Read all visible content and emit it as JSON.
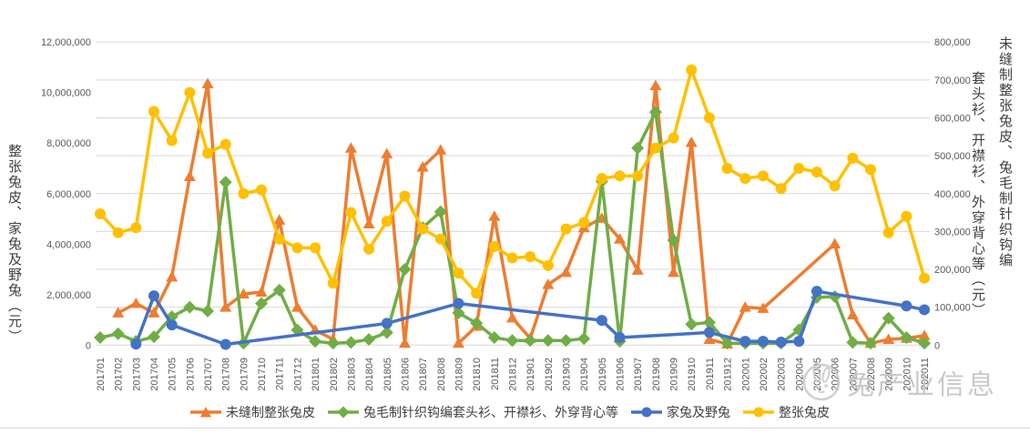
{
  "watermark": {
    "text": "兔产业信息",
    "logo": "rabbit-logo"
  },
  "left_axis": {
    "title": "整张兔皮、家兔及野兔（元）",
    "ticks": [
      "0",
      "2,000,000",
      "4,000,000",
      "6,000,000",
      "8,000,000",
      "10,000,000",
      "12,000,000"
    ],
    "max": 12000000
  },
  "right_axis": {
    "title_full": "未缝制整张兔皮、兔毛制针织钩编套头衫、开襟衫、外穿背心等（元）",
    "title_col_outer": "未缝制整张兔皮、兔毛制针织钩编",
    "title_col_inner": "套头衫、开襟衫、外穿背心等（元）",
    "ticks": [
      "0",
      "100,000",
      "200,000",
      "300,000",
      "400,000",
      "500,000",
      "600,000",
      "700,000",
      "800,000"
    ],
    "max": 800000
  },
  "colors": {
    "orange": "#ED7D31",
    "green": "#70AD47",
    "blue": "#4472C4",
    "yellow": "#FFC000",
    "gridline": "#d9d9d9",
    "tick_text": "#595959",
    "watermark": "#c4c4c4"
  },
  "chart_data": {
    "type": "line",
    "x": [
      "201701",
      "201702",
      "201703",
      "201704",
      "201705",
      "201706",
      "201707",
      "201708",
      "201709",
      "201710",
      "201711",
      "201712",
      "201801",
      "201802",
      "201803",
      "201804",
      "201805",
      "201806",
      "201807",
      "201808",
      "201809",
      "201810",
      "201811",
      "201812",
      "201901",
      "201902",
      "201903",
      "201904",
      "201905",
      "201906",
      "201907",
      "201908",
      "201909",
      "201910",
      "201911",
      "201912",
      "202001",
      "202002",
      "202003",
      "202004",
      "202005",
      "202006",
      "202007",
      "202008",
      "202009",
      "202010",
      "202011"
    ],
    "left_axis_range": [
      0,
      12000000
    ],
    "right_axis_range": [
      0,
      800000
    ],
    "grid": "horizontal",
    "legend_position": "bottom",
    "series": [
      {
        "name": "未缝制整张兔皮",
        "axis": "right",
        "marker": "triangle",
        "color": "#ED7D31",
        "values": [
          null,
          85000,
          110000,
          85000,
          180000,
          445000,
          690000,
          100000,
          135000,
          140000,
          330000,
          100000,
          40000,
          15000,
          520000,
          320000,
          505000,
          5000,
          470000,
          515000,
          5000,
          50000,
          340000,
          72000,
          18000,
          160000,
          192000,
          310000,
          335000,
          280000,
          198000,
          685000,
          192000,
          535000,
          15000,
          3000,
          100000,
          97000,
          null,
          null,
          null,
          267000,
          80000,
          5000,
          15000,
          18000,
          25000
        ]
      },
      {
        "name": "兔毛制针织钩编套头衫、开襟衫、外穿背心等",
        "axis": "right",
        "marker": "diamond",
        "color": "#70AD47",
        "values": [
          20000,
          30000,
          10000,
          22000,
          75000,
          100000,
          90000,
          430000,
          5000,
          110000,
          145000,
          40000,
          10000,
          5000,
          7000,
          15000,
          33000,
          200000,
          310000,
          352000,
          85000,
          58000,
          20000,
          12000,
          12000,
          12000,
          12000,
          17000,
          432000,
          10000,
          520000,
          615000,
          277000,
          55000,
          60000,
          5000,
          5000,
          5000,
          5000,
          40000,
          126000,
          128000,
          7000,
          5000,
          71000,
          20000,
          5000
        ]
      },
      {
        "name": "家兔及野兔",
        "axis": "left",
        "marker": "circle",
        "color": "#4472C4",
        "values": [
          null,
          null,
          40000,
          1950000,
          800000,
          null,
          null,
          30000,
          null,
          null,
          null,
          null,
          null,
          null,
          null,
          null,
          860000,
          null,
          null,
          null,
          1650000,
          null,
          null,
          null,
          null,
          null,
          null,
          null,
          980000,
          300000,
          null,
          null,
          null,
          null,
          500000,
          null,
          150000,
          150000,
          120000,
          150000,
          2130000,
          null,
          null,
          null,
          null,
          1550000,
          1400000
        ]
      },
      {
        "name": "整张兔皮",
        "axis": "left",
        "marker": "circle",
        "color": "#FFC000",
        "values": [
          5200000,
          4450000,
          4650000,
          9250000,
          8100000,
          10000000,
          7600000,
          7950000,
          6000000,
          6150000,
          4200000,
          3850000,
          3850000,
          2450000,
          5250000,
          3800000,
          4900000,
          5900000,
          4600000,
          4200000,
          2850000,
          2050000,
          3900000,
          3450000,
          3500000,
          3150000,
          4600000,
          4850000,
          6600000,
          6700000,
          6700000,
          7800000,
          8200000,
          10900000,
          9000000,
          7000000,
          6600000,
          6700000,
          6200000,
          7000000,
          6850000,
          6300000,
          7400000,
          6950000,
          4450000,
          5100000,
          2650000
        ]
      }
    ]
  },
  "legend": {
    "items": [
      "未缝制整张兔皮",
      "兔毛制针织钩编套头衫、开襟衫、外穿背心等",
      "家兔及野兔",
      "整张兔皮"
    ]
  }
}
